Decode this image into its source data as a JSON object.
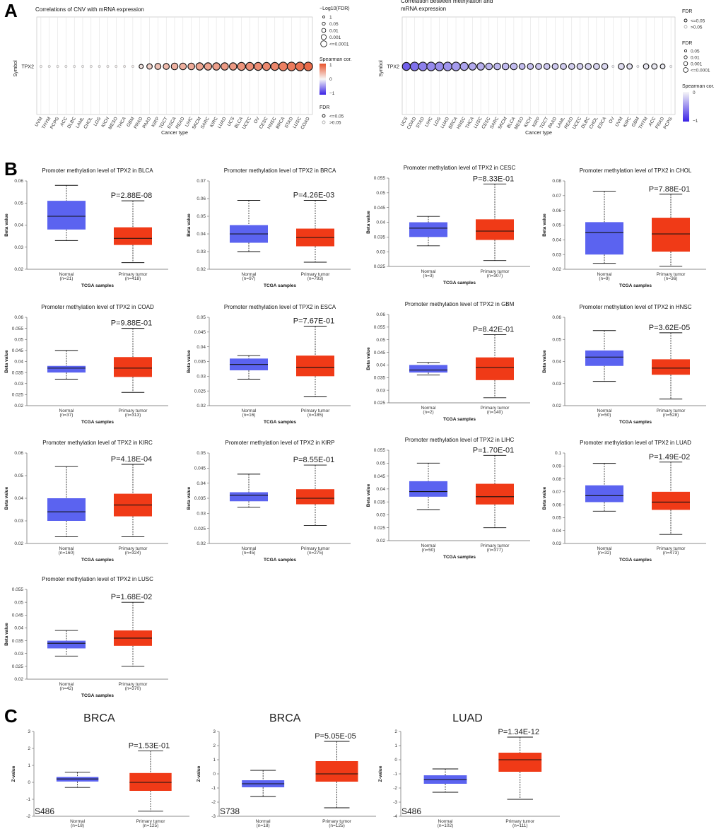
{
  "panel_labels": {
    "a": "A",
    "b": "B",
    "c": "C"
  },
  "chart_data": [
    {
      "type": "scatter",
      "id": "cnv",
      "title": "Correlations of CNV with mRNA expression",
      "ylabel": "Symbol",
      "xlabel": "Cancer type",
      "row_label": "TPX2",
      "categories": [
        "UVM",
        "THYM",
        "PCPG",
        "ACC",
        "DLBC",
        "LAML",
        "CHOL",
        "LGG",
        "KICH",
        "MESO",
        "THCA",
        "GBM",
        "PRAD",
        "PAAD",
        "KIRP",
        "TGCT",
        "ESCA",
        "READ",
        "LIHC",
        "SKCM",
        "SARC",
        "KIRC",
        "LUAD",
        "UCS",
        "BLCA",
        "UCEC",
        "OV",
        "CESC",
        "HNSC",
        "BRCA",
        "STAD",
        "LUSC",
        "COAD"
      ],
      "spearman": [
        0.02,
        0.02,
        0.02,
        0.02,
        0.02,
        0.02,
        0.03,
        0.03,
        0.03,
        0.04,
        0.05,
        0.05,
        0.1,
        0.2,
        0.3,
        0.35,
        0.4,
        0.42,
        0.45,
        0.48,
        0.5,
        0.52,
        0.55,
        0.56,
        0.6,
        0.62,
        0.64,
        0.66,
        0.68,
        0.72,
        0.75,
        0.8,
        0.85
      ],
      "neglog10fdr": [
        0,
        0,
        0,
        0,
        0,
        0,
        0,
        0,
        0,
        0,
        0,
        0,
        1.5,
        2.5,
        3,
        3,
        3.5,
        3.5,
        3.5,
        4,
        4,
        4,
        4,
        4,
        4.5,
        4.5,
        4.5,
        4.5,
        4.5,
        5,
        5,
        5,
        5
      ],
      "significant": [
        false,
        false,
        false,
        false,
        false,
        false,
        false,
        false,
        false,
        false,
        false,
        false,
        true,
        true,
        true,
        true,
        true,
        true,
        true,
        true,
        true,
        true,
        true,
        true,
        true,
        true,
        true,
        true,
        true,
        true,
        true,
        true,
        true
      ],
      "legend": {
        "size_title": "−Log10(FDR)",
        "size_labels": [
          "1",
          "0.05",
          "0.01",
          "0.001",
          "<=0.0001"
        ],
        "color_title": "Spearman cor.",
        "color_ticks": [
          "1",
          "0",
          "−1"
        ],
        "fdr_title": "FDR",
        "fdr_labels": [
          "<=0.05",
          ">0.05"
        ]
      }
    },
    {
      "type": "scatter",
      "id": "meth",
      "title_lines": [
        "Correlation between methylation and",
        "mRNA expression"
      ],
      "ylabel": "Symbol",
      "xlabel": "Cancer type",
      "row_label": "TPX2",
      "categories": [
        "UCS",
        "COAD",
        "STAD",
        "LIHC",
        "LGG",
        "LUAD",
        "BRCA",
        "HNSC",
        "THCA",
        "LUSC",
        "CESC",
        "SARC",
        "SKCM",
        "BLCA",
        "MESO",
        "KICH",
        "KIRP",
        "TGCT",
        "PAAD",
        "LAML",
        "READ",
        "UCEC",
        "DLBC",
        "CHOL",
        "ESCA",
        "OV",
        "UVM",
        "KIRC",
        "GBM",
        "THYM",
        "ACC",
        "PRAD",
        "PCPG"
      ],
      "spearman": [
        -0.7,
        -0.62,
        -0.55,
        -0.5,
        -0.48,
        -0.45,
        -0.42,
        -0.38,
        -0.35,
        -0.32,
        -0.3,
        -0.28,
        -0.27,
        -0.26,
        -0.25,
        -0.24,
        -0.22,
        -0.2,
        -0.19,
        -0.18,
        -0.17,
        -0.16,
        -0.15,
        -0.14,
        -0.12,
        -0.05,
        -0.1,
        -0.08,
        -0.05,
        -0.06,
        -0.05,
        -0.04,
        -0.02
      ],
      "neglog10fdr": [
        4.5,
        5,
        5,
        5,
        5,
        5,
        5,
        4.5,
        4,
        4,
        3.5,
        3.5,
        3.5,
        3.5,
        3,
        3,
        3,
        3,
        3,
        3,
        3,
        3,
        3,
        3,
        3,
        0,
        3,
        2.5,
        0,
        2.5,
        2.5,
        2,
        0
      ],
      "significant": [
        true,
        true,
        true,
        true,
        true,
        true,
        true,
        true,
        true,
        true,
        true,
        true,
        true,
        true,
        true,
        true,
        true,
        true,
        true,
        true,
        true,
        true,
        true,
        true,
        true,
        false,
        true,
        true,
        false,
        true,
        true,
        true,
        false
      ],
      "legend": {
        "fdr_title": "FDR",
        "fdr_labels": [
          "<=0.05",
          ">0.05"
        ],
        "size_title": "FDR",
        "size_labels": [
          "0.05",
          "0.01",
          "0.001",
          "<=0.0001"
        ],
        "color_title": "Spearman cor.",
        "color_ticks": [
          "0",
          "−1"
        ]
      }
    },
    {
      "type": "boxplot",
      "id": "b_blca",
      "title": "Promoter methylation level of TPX2 in BLCA",
      "ylabel": "Beta value",
      "xlabel": "TCGA samples",
      "ylim": [
        0.02,
        0.06
      ],
      "yticks": [
        "0.02",
        "0.03",
        "0.04",
        "0.05",
        "0.06"
      ],
      "pvalue": "P=2.88E-08",
      "groups": [
        {
          "name": "Normal",
          "n": "(n=21)",
          "min": 0.033,
          "q1": 0.038,
          "median": 0.044,
          "q3": 0.051,
          "max": 0.058
        },
        {
          "name": "Primary tumor",
          "n": "(n=418)",
          "min": 0.023,
          "q1": 0.031,
          "median": 0.034,
          "q3": 0.039,
          "max": 0.051
        }
      ]
    },
    {
      "type": "boxplot",
      "id": "b_brca",
      "title": "Promoter methylation level of TPX2 in BRCA",
      "ylabel": "Beta value",
      "xlabel": "TCGA samples",
      "ylim": [
        0.02,
        0.07
      ],
      "yticks": [
        "0.02",
        "0.03",
        "0.04",
        "0.05",
        "0.06",
        "0.07"
      ],
      "pvalue": "P=4.26E-03",
      "groups": [
        {
          "name": "Normal",
          "n": "(n=97)",
          "min": 0.03,
          "q1": 0.035,
          "median": 0.04,
          "q3": 0.045,
          "max": 0.059
        },
        {
          "name": "Primary tumor",
          "n": "(n=793)",
          "min": 0.024,
          "q1": 0.033,
          "median": 0.038,
          "q3": 0.043,
          "max": 0.059
        }
      ]
    },
    {
      "type": "boxplot",
      "id": "b_cesc",
      "title": "Promoter methylation level of TPX2 in CESC",
      "ylabel": "Beta value",
      "xlabel": "TCGA samples",
      "ylim": [
        0.025,
        0.055
      ],
      "yticks": [
        "0.025",
        "0.03",
        "0.035",
        "0.04",
        "0.045",
        "0.05",
        "0.055"
      ],
      "pvalue": "P=8.33E-01",
      "groups": [
        {
          "name": "Normal",
          "n": "(n=3)",
          "min": 0.032,
          "q1": 0.035,
          "median": 0.038,
          "q3": 0.04,
          "max": 0.042
        },
        {
          "name": "Primary tumor",
          "n": "(n=307)",
          "min": 0.027,
          "q1": 0.034,
          "median": 0.037,
          "q3": 0.041,
          "max": 0.053
        }
      ]
    },
    {
      "type": "boxplot",
      "id": "b_chol",
      "title": "Promoter methylation level of TPX2 in CHOL",
      "ylabel": "Beta value",
      "xlabel": "TCGA samples",
      "ylim": [
        0.02,
        0.08
      ],
      "yticks": [
        "0.02",
        "0.03",
        "0.04",
        "0.05",
        "0.06",
        "0.07",
        "0.08"
      ],
      "pvalue": "P=7.88E-01",
      "groups": [
        {
          "name": "Normal",
          "n": "(n=9)",
          "min": 0.024,
          "q1": 0.03,
          "median": 0.045,
          "q3": 0.052,
          "max": 0.073
        },
        {
          "name": "Primary tumor",
          "n": "(n=36)",
          "min": 0.022,
          "q1": 0.032,
          "median": 0.044,
          "q3": 0.055,
          "max": 0.071
        }
      ]
    },
    {
      "type": "boxplot",
      "id": "b_coad",
      "title": "Promoter methylation level of TPX2 in COAD",
      "ylabel": "Beta value",
      "xlabel": "TCGA samples",
      "ylim": [
        0.02,
        0.06
      ],
      "yticks": [
        "0.02",
        "0.025",
        "0.03",
        "0.035",
        "0.04",
        "0.045",
        "0.05",
        "0.055",
        "0.06"
      ],
      "pvalue": "P=9.88E-01",
      "groups": [
        {
          "name": "Normal",
          "n": "(n=37)",
          "min": 0.032,
          "q1": 0.035,
          "median": 0.037,
          "q3": 0.038,
          "max": 0.045
        },
        {
          "name": "Primary tumor",
          "n": "(n=313)",
          "min": 0.026,
          "q1": 0.033,
          "median": 0.037,
          "q3": 0.042,
          "max": 0.055
        }
      ]
    },
    {
      "type": "boxplot",
      "id": "b_esca",
      "title": "Promoter methylation level of TPX2 in ESCA",
      "ylabel": "Beta value",
      "xlabel": "TCGA samples",
      "ylim": [
        0.02,
        0.05
      ],
      "yticks": [
        "0.02",
        "0.025",
        "0.03",
        "0.035",
        "0.04",
        "0.045",
        "0.05"
      ],
      "pvalue": "P=7.67E-01",
      "groups": [
        {
          "name": "Normal",
          "n": "(n=16)",
          "min": 0.029,
          "q1": 0.032,
          "median": 0.034,
          "q3": 0.036,
          "max": 0.037
        },
        {
          "name": "Primary tumor",
          "n": "(n=185)",
          "min": 0.023,
          "q1": 0.03,
          "median": 0.033,
          "q3": 0.037,
          "max": 0.047
        }
      ]
    },
    {
      "type": "boxplot",
      "id": "b_gbm",
      "title": "Promoter methylation level of TPX2 in GBM",
      "ylabel": "Beta value",
      "xlabel": "TCGA samples",
      "ylim": [
        0.025,
        0.06
      ],
      "yticks": [
        "0.025",
        "0.03",
        "0.035",
        "0.04",
        "0.045",
        "0.05",
        "0.055",
        "0.06"
      ],
      "pvalue": "P=8.42E-01",
      "groups": [
        {
          "name": "Normal",
          "n": "(n=2)",
          "min": 0.036,
          "q1": 0.037,
          "median": 0.038,
          "q3": 0.04,
          "max": 0.041
        },
        {
          "name": "Primary tumor",
          "n": "(n=140)",
          "min": 0.027,
          "q1": 0.034,
          "median": 0.039,
          "q3": 0.043,
          "max": 0.052
        }
      ]
    },
    {
      "type": "boxplot",
      "id": "b_hnsc",
      "title": "Promoter methylation level of TPX2 in HNSC",
      "ylabel": "Beta value",
      "xlabel": "TCGA samples",
      "ylim": [
        0.02,
        0.06
      ],
      "yticks": [
        "0.02",
        "0.03",
        "0.04",
        "0.05",
        "0.06"
      ],
      "pvalue": "P=3.62E-05",
      "groups": [
        {
          "name": "Normal",
          "n": "(n=50)",
          "min": 0.031,
          "q1": 0.038,
          "median": 0.042,
          "q3": 0.045,
          "max": 0.054
        },
        {
          "name": "Primary tumor",
          "n": "(n=528)",
          "min": 0.023,
          "q1": 0.034,
          "median": 0.037,
          "q3": 0.041,
          "max": 0.053
        }
      ]
    },
    {
      "type": "boxplot",
      "id": "b_kirc",
      "title": "Promoter methylation level of TPX2 in KIRC",
      "ylabel": "Beta value",
      "xlabel": "TCGA samples",
      "ylim": [
        0.02,
        0.06
      ],
      "yticks": [
        "0.02",
        "0.03",
        "0.04",
        "0.05",
        "0.06"
      ],
      "pvalue": "P=4.18E-04",
      "groups": [
        {
          "name": "Normal",
          "n": "(n=160)",
          "min": 0.023,
          "q1": 0.03,
          "median": 0.034,
          "q3": 0.04,
          "max": 0.054
        },
        {
          "name": "Primary tumor",
          "n": "(n=324)",
          "min": 0.023,
          "q1": 0.032,
          "median": 0.037,
          "q3": 0.042,
          "max": 0.055
        }
      ]
    },
    {
      "type": "boxplot",
      "id": "b_kirp",
      "title": "Promoter methylation level of TPX2 in KIRP",
      "ylabel": "Beta value",
      "xlabel": "TCGA samples",
      "ylim": [
        0.02,
        0.05
      ],
      "yticks": [
        "0.02",
        "0.025",
        "0.03",
        "0.035",
        "0.04",
        "0.045",
        "0.05"
      ],
      "pvalue": "P=8.55E-01",
      "groups": [
        {
          "name": "Normal",
          "n": "(n=45)",
          "min": 0.032,
          "q1": 0.034,
          "median": 0.036,
          "q3": 0.037,
          "max": 0.043
        },
        {
          "name": "Primary tumor",
          "n": "(n=275)",
          "min": 0.026,
          "q1": 0.033,
          "median": 0.035,
          "q3": 0.038,
          "max": 0.046
        }
      ]
    },
    {
      "type": "boxplot",
      "id": "b_lihc",
      "title": "Promoter methylation level of TPX2 in LIHC",
      "ylabel": "Beta value",
      "xlabel": "TCGA samples",
      "ylim": [
        0.02,
        0.055
      ],
      "yticks": [
        "0.02",
        "0.025",
        "0.03",
        "0.035",
        "0.04",
        "0.045",
        "0.05",
        "0.055"
      ],
      "pvalue": "P=1.70E-01",
      "groups": [
        {
          "name": "Normal",
          "n": "(n=50)",
          "min": 0.032,
          "q1": 0.037,
          "median": 0.039,
          "q3": 0.043,
          "max": 0.05
        },
        {
          "name": "Primary tumor",
          "n": "(n=377)",
          "min": 0.025,
          "q1": 0.034,
          "median": 0.037,
          "q3": 0.042,
          "max": 0.053
        }
      ]
    },
    {
      "type": "boxplot",
      "id": "b_luad",
      "title": "Promoter methylation level of TPX2 in LUAD",
      "ylabel": "Beta value",
      "xlabel": "TCGA samples",
      "ylim": [
        0.03,
        0.1
      ],
      "yticks": [
        "0.03",
        "0.04",
        "0.05",
        "0.06",
        "0.07",
        "0.08",
        "0.09",
        "0.1"
      ],
      "pvalue": "P=1.49E-02",
      "groups": [
        {
          "name": "Normal",
          "n": "(n=32)",
          "min": 0.055,
          "q1": 0.062,
          "median": 0.067,
          "q3": 0.075,
          "max": 0.092
        },
        {
          "name": "Primary tumor",
          "n": "(n=473)",
          "min": 0.037,
          "q1": 0.056,
          "median": 0.062,
          "q3": 0.07,
          "max": 0.093
        }
      ]
    },
    {
      "type": "boxplot",
      "id": "b_lusc",
      "title": "Promoter methylation level of TPX2 in LUSC",
      "ylabel": "Beta value",
      "xlabel": "TCGA samples",
      "ylim": [
        0.02,
        0.055
      ],
      "yticks": [
        "0.02",
        "0.025",
        "0.03",
        "0.035",
        "0.04",
        "0.045",
        "0.05",
        "0.055"
      ],
      "pvalue": "P=1.68E-02",
      "groups": [
        {
          "name": "Normal",
          "n": "(n=42)",
          "min": 0.029,
          "q1": 0.032,
          "median": 0.034,
          "q3": 0.035,
          "max": 0.039
        },
        {
          "name": "Primary tumor",
          "n": "(n=370)",
          "min": 0.025,
          "q1": 0.033,
          "median": 0.036,
          "q3": 0.039,
          "max": 0.05
        }
      ]
    },
    {
      "type": "boxplot",
      "id": "c_brca486",
      "title": "BRCA",
      "ylabel": "Z-value",
      "xlabel": "",
      "ylim": [
        -2,
        3
      ],
      "yticks": [
        "-2",
        "-1",
        "0",
        "1",
        "2",
        "3"
      ],
      "pvalue": "P=1.53E-01",
      "site": "S486",
      "groups": [
        {
          "name": "Normal",
          "n": "(n=18)",
          "min": -0.3,
          "q1": 0.05,
          "median": 0.2,
          "q3": 0.32,
          "max": 0.6
        },
        {
          "name": "Primary tumor",
          "n": "(n=125)",
          "min": -1.7,
          "q1": -0.5,
          "median": 0.0,
          "q3": 0.55,
          "max": 1.85
        }
      ]
    },
    {
      "type": "boxplot",
      "id": "c_brca738",
      "title": "BRCA",
      "ylabel": "Z-value",
      "xlabel": "",
      "ylim": [
        -3,
        3
      ],
      "yticks": [
        "-3",
        "-2",
        "-1",
        "0",
        "1",
        "2",
        "3"
      ],
      "pvalue": "P=5.05E-05",
      "site": "S738",
      "groups": [
        {
          "name": "Normal",
          "n": "(n=18)",
          "min": -1.6,
          "q1": -0.95,
          "median": -0.7,
          "q3": -0.45,
          "max": 0.25
        },
        {
          "name": "Primary tumor",
          "n": "(n=125)",
          "min": -2.4,
          "q1": -0.55,
          "median": 0.0,
          "q3": 0.9,
          "max": 2.3
        }
      ]
    },
    {
      "type": "boxplot",
      "id": "c_luad486",
      "title": "LUAD",
      "ylabel": "Z-value",
      "xlabel": "",
      "ylim": [
        -4,
        2
      ],
      "yticks": [
        "-4",
        "-3",
        "-2",
        "-1",
        "0",
        "1",
        "2"
      ],
      "pvalue": "P=1.34E-12",
      "site": "S486",
      "groups": [
        {
          "name": "Normal",
          "n": "(n=102)",
          "min": -2.3,
          "q1": -1.7,
          "median": -1.4,
          "q3": -1.1,
          "max": -0.65
        },
        {
          "name": "Primary tumor",
          "n": "(n=111)",
          "min": -2.8,
          "q1": -0.85,
          "median": 0.0,
          "q3": 0.5,
          "max": 1.6
        }
      ]
    }
  ]
}
